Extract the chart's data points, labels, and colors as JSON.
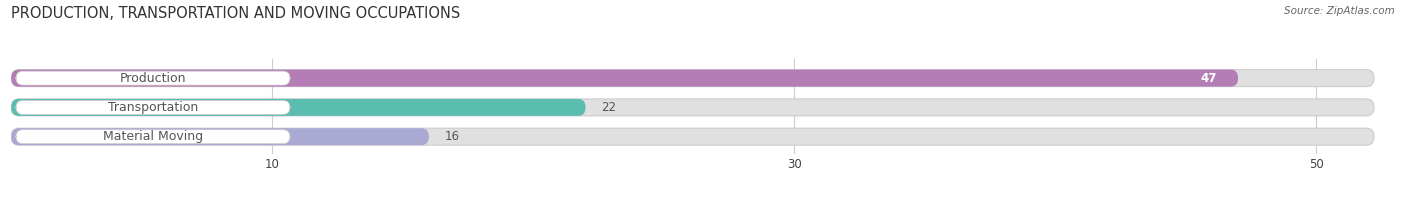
{
  "title": "PRODUCTION, TRANSPORTATION AND MOVING OCCUPATIONS",
  "source": "Source: ZipAtlas.com",
  "categories": [
    "Production",
    "Transportation",
    "Material Moving"
  ],
  "values": [
    47,
    22,
    16
  ],
  "bar_colors": [
    "#b57db5",
    "#5bbcb0",
    "#a9a9d4"
  ],
  "bar_bg_color": "#e0e0e0",
  "xlim": [
    0,
    53
  ],
  "xticks": [
    10,
    30,
    50
  ],
  "title_fontsize": 10.5,
  "label_fontsize": 9,
  "value_fontsize": 8.5,
  "bar_height": 0.58,
  "background_color": "#ffffff",
  "value_inside_color": "#ffffff",
  "value_outside_color": "#555555",
  "label_color": "#555555",
  "inside_value_threshold": 40
}
